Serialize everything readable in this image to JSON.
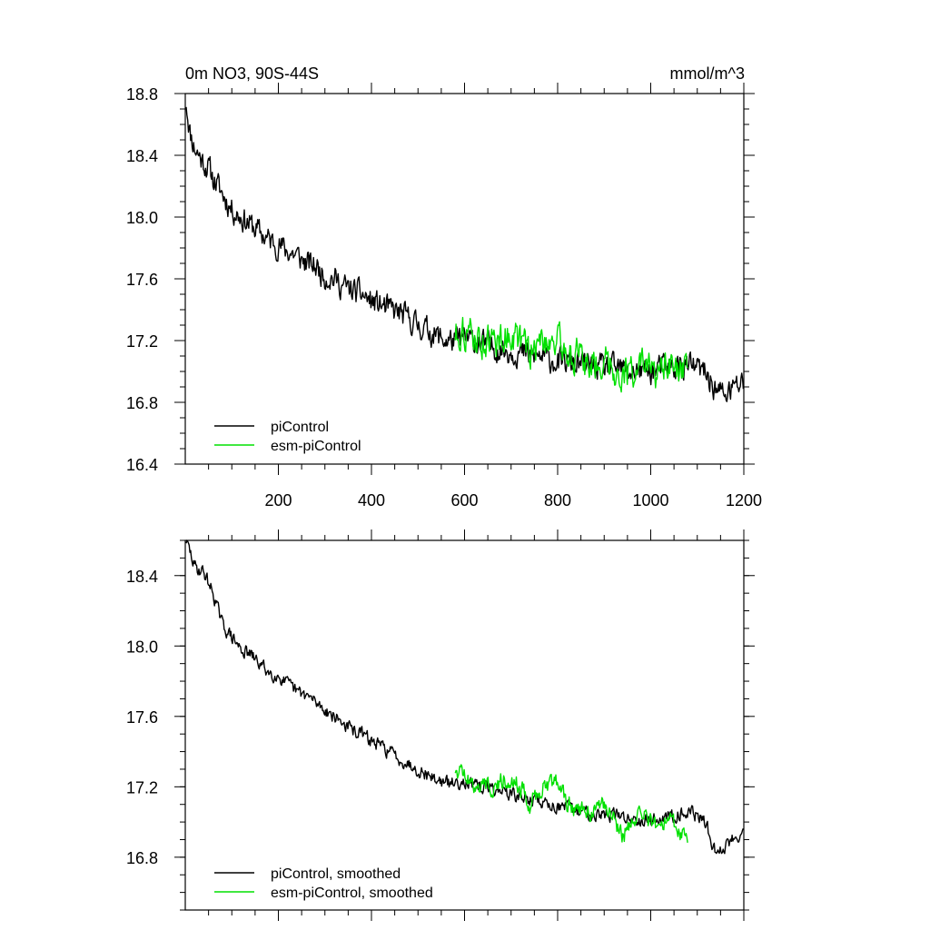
{
  "chart_data": [
    {
      "type": "line",
      "title_left": "0m NO3, 90S-44S",
      "title_right": "mmol/m^3",
      "xlabel": "",
      "ylabel": "",
      "xlim": [
        0,
        1200
      ],
      "ylim": [
        16.4,
        18.8
      ],
      "x_ticks": [
        200,
        400,
        600,
        800,
        1000,
        1200
      ],
      "y_ticks": [
        16.4,
        16.8,
        17.2,
        17.6,
        18.0,
        18.4,
        18.8
      ],
      "legend": {
        "position": "bottom-left",
        "entries": [
          "piControl",
          "esm-piControl"
        ]
      },
      "series": [
        {
          "name": "piControl",
          "color": "#000000",
          "x": [
            2,
            10,
            20,
            30,
            40,
            50,
            60,
            80,
            100,
            120,
            140,
            160,
            180,
            200,
            220,
            240,
            260,
            280,
            300,
            320,
            340,
            360,
            380,
            400,
            420,
            440,
            460,
            480,
            500,
            520,
            540,
            560,
            580,
            600,
            620,
            640,
            660,
            680,
            700,
            720,
            740,
            760,
            780,
            800,
            820,
            840,
            860,
            880,
            900,
            920,
            940,
            960,
            980,
            1000,
            1020,
            1040,
            1060,
            1080,
            1100,
            1120,
            1140,
            1160,
            1180,
            1200
          ],
          "values": [
            18.75,
            18.55,
            18.45,
            18.4,
            18.35,
            18.32,
            18.25,
            18.15,
            18.05,
            18.0,
            17.95,
            17.9,
            17.85,
            17.82,
            17.78,
            17.75,
            17.7,
            17.68,
            17.62,
            17.6,
            17.55,
            17.52,
            17.5,
            17.45,
            17.43,
            17.4,
            17.38,
            17.34,
            17.3,
            17.27,
            17.23,
            17.2,
            17.2,
            17.21,
            17.2,
            17.18,
            17.16,
            17.14,
            17.13,
            17.12,
            17.1,
            17.1,
            17.08,
            17.06,
            17.06,
            17.05,
            17.04,
            17.03,
            17.02,
            17.02,
            17.01,
            17.0,
            17.0,
            17.0,
            17.02,
            17.03,
            17.03,
            17.04,
            17.02,
            16.98,
            16.88,
            16.85,
            16.9,
            16.92
          ],
          "noise": 0.13
        },
        {
          "name": "esm-piControl",
          "color": "#00e000",
          "x": [
            580,
            600,
            620,
            640,
            660,
            680,
            700,
            720,
            740,
            760,
            780,
            800,
            820,
            840,
            860,
            880,
            900,
            920,
            940,
            960,
            980,
            1000,
            1020,
            1040,
            1060,
            1080
          ],
          "values": [
            17.25,
            17.26,
            17.22,
            17.2,
            17.18,
            17.22,
            17.24,
            17.2,
            17.12,
            17.18,
            17.22,
            17.2,
            17.12,
            17.1,
            17.06,
            17.05,
            17.08,
            17.02,
            16.98,
            17.0,
            17.04,
            17.0,
            16.98,
            17.02,
            16.98,
            16.96
          ],
          "noise": 0.17
        }
      ]
    },
    {
      "type": "line",
      "xlim": [
        0,
        1200
      ],
      "ylim": [
        16.5,
        18.6
      ],
      "y_ticks": [
        16.8,
        17.2,
        17.6,
        18.0,
        18.4
      ],
      "legend": {
        "position": "bottom-left",
        "entries": [
          "piControl, smoothed",
          "esm-piControl, smoothed"
        ]
      },
      "series": [
        {
          "name": "piControl, smoothed",
          "color": "#000000",
          "x": [
            2,
            20,
            40,
            60,
            80,
            100,
            120,
            140,
            160,
            180,
            200,
            220,
            240,
            260,
            280,
            300,
            320,
            340,
            360,
            380,
            400,
            420,
            440,
            460,
            480,
            500,
            520,
            540,
            560,
            580,
            600,
            620,
            640,
            660,
            680,
            700,
            720,
            740,
            760,
            780,
            800,
            820,
            840,
            860,
            880,
            900,
            920,
            940,
            960,
            980,
            1000,
            1020,
            1040,
            1060,
            1080,
            1100,
            1120,
            1140,
            1160,
            1180,
            1200
          ],
          "values": [
            18.6,
            18.45,
            18.42,
            18.3,
            18.12,
            18.05,
            17.98,
            17.95,
            17.9,
            17.85,
            17.83,
            17.78,
            17.74,
            17.72,
            17.68,
            17.64,
            17.6,
            17.56,
            17.52,
            17.5,
            17.46,
            17.43,
            17.4,
            17.36,
            17.33,
            17.3,
            17.27,
            17.24,
            17.22,
            17.22,
            17.24,
            17.2,
            17.2,
            17.19,
            17.18,
            17.16,
            17.14,
            17.13,
            17.12,
            17.1,
            17.09,
            17.08,
            17.06,
            17.06,
            17.05,
            17.04,
            17.04,
            17.03,
            17.02,
            17.02,
            17.01,
            17.02,
            17.03,
            17.05,
            17.06,
            17.04,
            16.98,
            16.82,
            16.86,
            16.92,
            16.94
          ],
          "noise": 0.06
        },
        {
          "name": "esm-piControl, smoothed",
          "color": "#00e000",
          "x": [
            580,
            600,
            620,
            640,
            660,
            680,
            700,
            720,
            740,
            760,
            780,
            800,
            820,
            840,
            860,
            880,
            900,
            920,
            940,
            960,
            980,
            1000,
            1020,
            1040,
            1060,
            1080
          ],
          "values": [
            17.3,
            17.28,
            17.2,
            17.22,
            17.2,
            17.24,
            17.26,
            17.2,
            17.1,
            17.18,
            17.22,
            17.24,
            17.1,
            17.08,
            17.06,
            17.05,
            17.1,
            17.02,
            16.92,
            17.0,
            17.04,
            17.0,
            16.98,
            17.02,
            16.96,
            16.9
          ],
          "noise": 0.08
        }
      ]
    }
  ]
}
